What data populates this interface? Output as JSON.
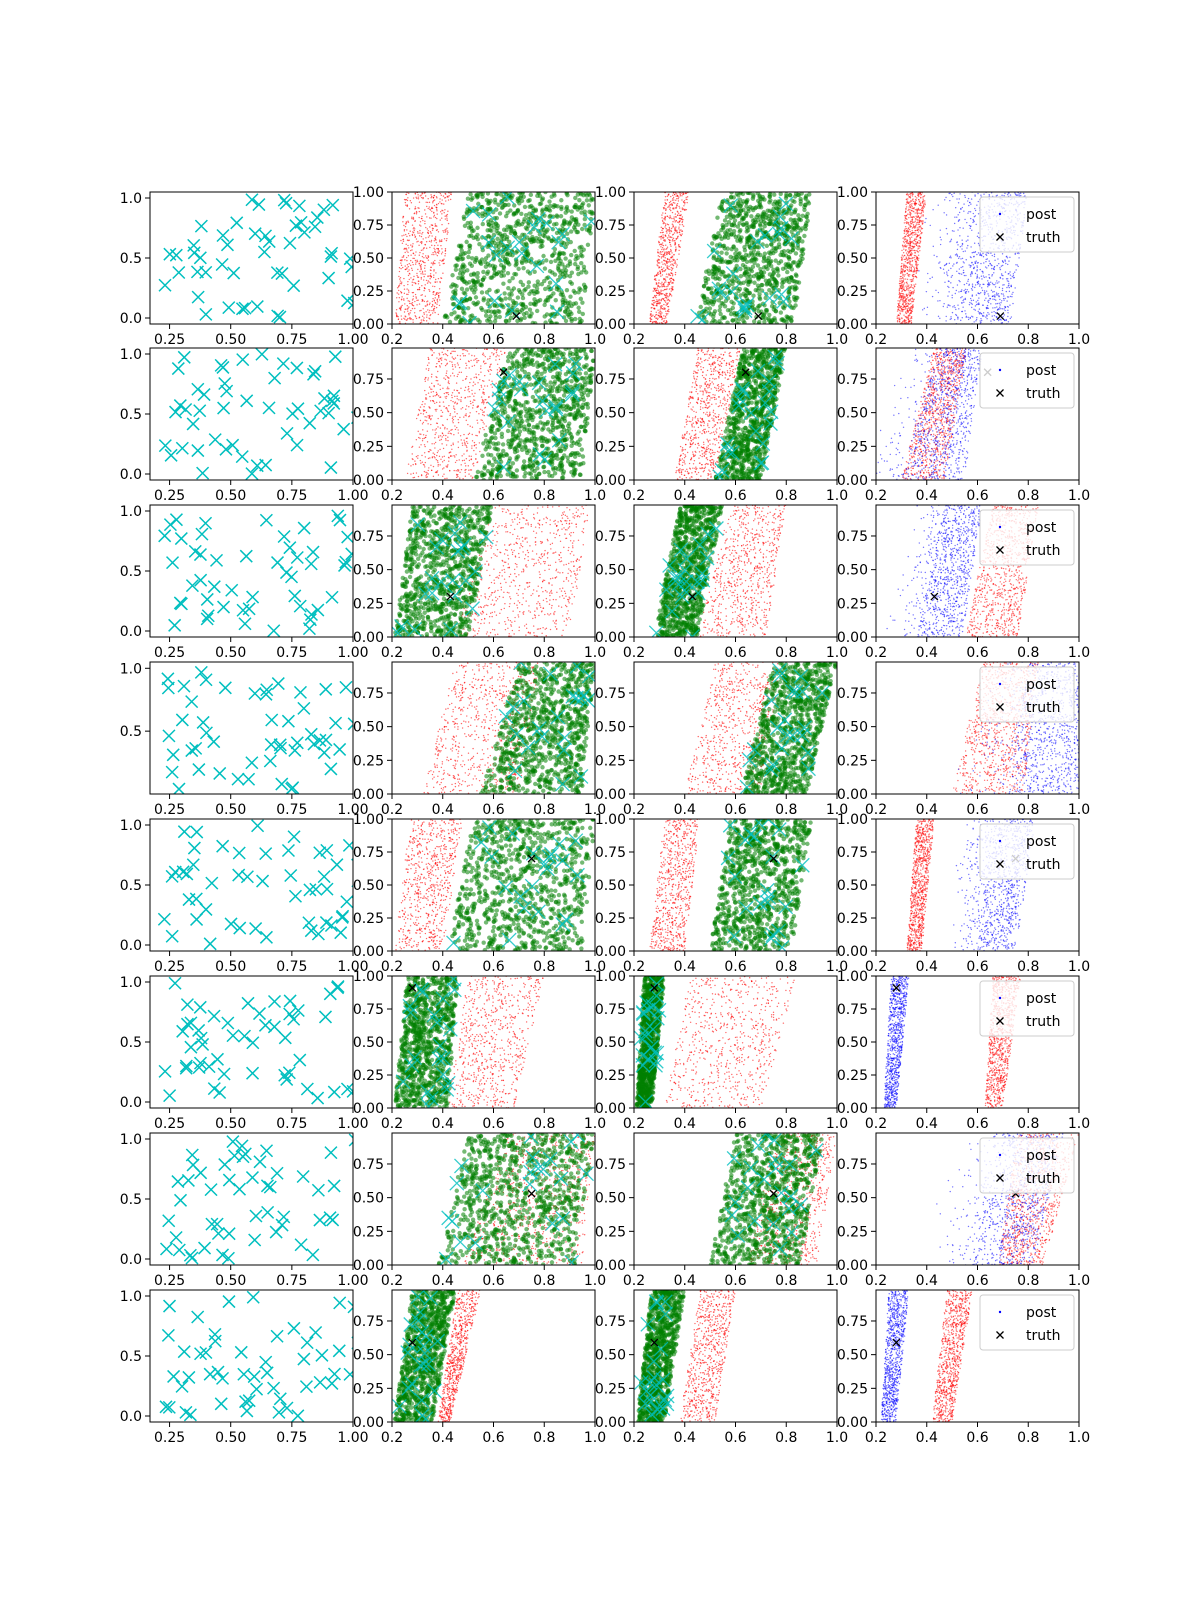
{
  "chart_data": {
    "type": "scatter",
    "title": "",
    "xlabel": "",
    "ylabel": "",
    "grid": false,
    "layout": {
      "rows": 8,
      "cols": 4
    },
    "colors": {
      "samples": "#00bfbf",
      "red": "#ff0000",
      "green": "#008000",
      "blue": "#0000ff",
      "truth": "#000000"
    },
    "legend": {
      "entries": [
        "post",
        "truth"
      ],
      "location": "upper-right",
      "panel_column": 4
    },
    "column_axes": [
      {
        "xlim": [
          0.17,
          1.0
        ],
        "xticks": [
          "0.25",
          "0.50",
          "0.75",
          "1.00"
        ]
      },
      {
        "xlim": [
          0.2,
          1.0
        ],
        "xticks": [
          "0.2",
          "0.4",
          "0.6",
          "0.8",
          "1.0"
        ]
      },
      {
        "xlim": [
          0.2,
          1.0
        ],
        "xticks": [
          "0.2",
          "0.4",
          "0.6",
          "0.8",
          "1.0"
        ]
      },
      {
        "xlim": [
          0.2,
          1.0
        ],
        "xticks": [
          "0.2",
          "0.4",
          "0.6",
          "0.8",
          "1.0"
        ]
      }
    ],
    "rows": [
      {
        "truth": [
          0.69,
          0.06
        ],
        "col1_yticks": [
          "0.0",
          "0.5",
          "1.0"
        ],
        "col1_ylim": [
          -0.05,
          1.05
        ],
        "right_yticks": [
          "0.00",
          "0.25",
          "0.50",
          "0.75",
          "1.00"
        ],
        "right_ylim": [
          0,
          1
        ],
        "bands": {
          "c2": {
            "red": [
              0.21,
              0.38,
              0.25,
              0.44
            ],
            "green": [
              0.4,
              0.95,
              0.5,
              1.0
            ]
          },
          "c3": {
            "red": [
              0.26,
              0.33,
              0.32,
              0.42
            ],
            "green": [
              0.44,
              0.83,
              0.55,
              0.9
            ]
          },
          "c4": {
            "red": [
              0.28,
              0.34,
              0.32,
              0.4
            ],
            "blue": [
              0.52,
              0.73,
              0.58,
              0.8
            ],
            "blue_spread": 0.55
          }
        }
      },
      {
        "truth": [
          0.64,
          0.8
        ],
        "col1_yticks": [
          "0.0",
          "0.5",
          "1.0"
        ],
        "col1_ylim": [
          -0.05,
          1.05
        ],
        "right_yticks": [
          "0.00",
          "0.25",
          "0.50",
          "0.75"
        ],
        "right_ylim": [
          0,
          0.98
        ],
        "bands": {
          "c2": {
            "red": [
              0.25,
              0.52,
              0.35,
              0.65
            ],
            "green": [
              0.52,
              0.95,
              0.66,
              1.0
            ]
          },
          "c3": {
            "red": [
              0.36,
              0.52,
              0.45,
              0.62
            ],
            "green": [
              0.52,
              0.7,
              0.63,
              0.8
            ]
          },
          "c4": {
            "red": [
              0.3,
              0.47,
              0.43,
              0.56
            ],
            "blue": [
              0.3,
              0.55,
              0.45,
              0.62
            ],
            "blue_spread": 0.3
          }
        }
      },
      {
        "truth": [
          0.43,
          0.3
        ],
        "col1_yticks": [
          "0.0",
          "0.5",
          "1.0"
        ],
        "col1_ylim": [
          -0.05,
          1.05
        ],
        "right_yticks": [
          "0.00",
          "0.25",
          "0.50",
          "0.75"
        ],
        "right_ylim": [
          0,
          0.98
        ],
        "bands": {
          "c2": {
            "red": [
              0.45,
              0.9,
              0.6,
              0.98
            ],
            "green": [
              0.21,
              0.5,
              0.28,
              0.6
            ]
          },
          "c3": {
            "red": [
              0.45,
              0.72,
              0.58,
              0.8
            ],
            "green": [
              0.28,
              0.45,
              0.38,
              0.55
            ]
          },
          "c4": {
            "red": [
              0.55,
              0.76,
              0.66,
              0.84
            ],
            "blue": [
              0.36,
              0.54,
              0.47,
              0.62
            ],
            "blue_spread": 0.35
          }
        }
      },
      {
        "truth": null,
        "col1_yticks": [
          "0.5",
          "1.0"
        ],
        "col1_ylim": [
          0.0,
          1.05
        ],
        "right_yticks": [
          "0.00",
          "0.25",
          "0.50",
          "0.75"
        ],
        "right_ylim": [
          0,
          0.98
        ],
        "bands": {
          "c2": {
            "red": [
              0.32,
              0.7,
              0.45,
              0.78
            ],
            "green": [
              0.55,
              0.95,
              0.7,
              1.0
            ]
          },
          "c3": {
            "red": [
              0.4,
              0.7,
              0.52,
              0.78
            ],
            "green": [
              0.62,
              0.88,
              0.75,
              1.0
            ]
          },
          "c4": {
            "red": [
              0.5,
              0.78,
              0.62,
              0.84
            ],
            "blue": [
              0.72,
              1.0,
              0.8,
              1.0
            ],
            "blue_spread": 0.3
          }
        }
      },
      {
        "truth": [
          0.75,
          0.7
        ],
        "col1_yticks": [
          "0.0",
          "0.5",
          "1.0"
        ],
        "col1_ylim": [
          -0.05,
          1.05
        ],
        "right_yticks": [
          "0.00",
          "0.25",
          "0.50",
          "0.75",
          "1.00"
        ],
        "right_ylim": [
          0,
          1
        ],
        "bands": {
          "c2": {
            "red": [
              0.21,
              0.4,
              0.27,
              0.48
            ],
            "green": [
              0.42,
              0.95,
              0.52,
              1.0
            ]
          },
          "c3": {
            "red": [
              0.26,
              0.4,
              0.32,
              0.46
            ],
            "green": [
              0.5,
              0.82,
              0.58,
              0.9
            ]
          },
          "c4": {
            "red": [
              0.32,
              0.38,
              0.36,
              0.43
            ],
            "blue": [
              0.6,
              0.75,
              0.66,
              0.83
            ],
            "blue_spread": 0.55
          }
        }
      },
      {
        "truth": [
          0.28,
          0.91
        ],
        "col1_yticks": [
          "0.0",
          "0.5",
          "1.0"
        ],
        "col1_ylim": [
          -0.05,
          1.05
        ],
        "right_yticks": [
          "0.00",
          "0.25",
          "0.50",
          "0.75",
          "1.00"
        ],
        "right_ylim": [
          0,
          1
        ],
        "bands": {
          "c2": {
            "red": [
              0.42,
              0.68,
              0.5,
              0.8
            ],
            "green": [
              0.21,
              0.42,
              0.26,
              0.46
            ]
          },
          "c3": {
            "red": [
              0.32,
              0.7,
              0.42,
              0.84
            ],
            "green": [
              0.21,
              0.27,
              0.24,
              0.32
            ]
          },
          "c4": {
            "red": [
              0.63,
              0.7,
              0.66,
              0.77
            ],
            "blue": [
              0.23,
              0.28,
              0.26,
              0.33
            ],
            "blue_spread": 0.0
          }
        }
      },
      {
        "truth": [
          0.75,
          0.53
        ],
        "col1_yticks": [
          "0.0",
          "0.5",
          "1.0"
        ],
        "col1_ylim": [
          -0.05,
          1.05
        ],
        "right_yticks": [
          "0.00",
          "0.25",
          "0.50",
          "0.75"
        ],
        "right_ylim": [
          0,
          0.98
        ],
        "bands": {
          "c2": {
            "red": [
              0.48,
              0.95,
              0.65,
              1.0
            ],
            "green": [
              0.38,
              0.92,
              0.5,
              1.0
            ]
          },
          "c3": {
            "red": [
              0.65,
              0.92,
              0.75,
              1.0
            ],
            "green": [
              0.5,
              0.85,
              0.6,
              0.95
            ]
          },
          "c4": {
            "red": [
              0.68,
              0.86,
              0.76,
              1.0
            ],
            "blue": [
              0.58,
              0.82,
              0.7,
              0.94
            ],
            "blue_spread": 0.35
          }
        }
      },
      {
        "truth": [
          0.28,
          0.59
        ],
        "col1_yticks": [
          "0.0",
          "0.5",
          "1.0"
        ],
        "col1_ylim": [
          -0.05,
          1.05
        ],
        "right_yticks": [
          "0.00",
          "0.25",
          "0.50",
          "0.75"
        ],
        "right_ylim": [
          0,
          0.98
        ],
        "bands": {
          "c2": {
            "red": [
              0.38,
              0.43,
              0.46,
              0.55
            ],
            "green": [
              0.21,
              0.36,
              0.28,
              0.45
            ]
          },
          "c3": {
            "red": [
              0.38,
              0.52,
              0.46,
              0.6
            ],
            "green": [
              0.21,
              0.32,
              0.27,
              0.4
            ]
          },
          "c4": {
            "red": [
              0.42,
              0.5,
              0.48,
              0.58
            ],
            "blue": [
              0.22,
              0.28,
              0.25,
              0.33
            ],
            "blue_spread": 0.0
          }
        }
      }
    ]
  }
}
